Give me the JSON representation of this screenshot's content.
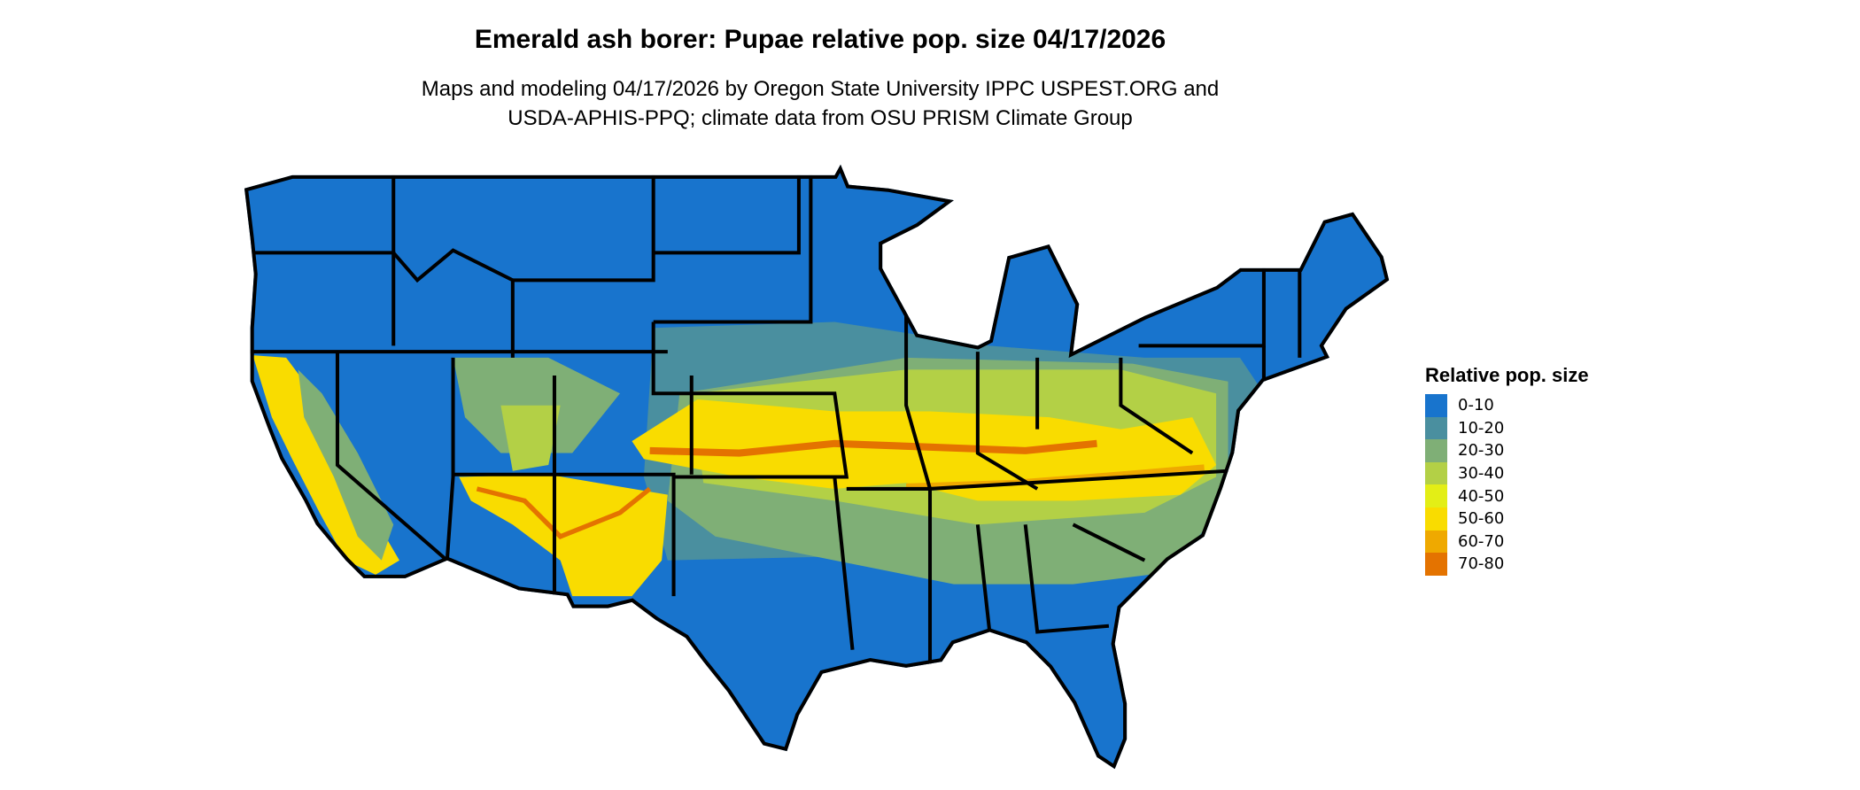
{
  "header": {
    "title": "Emerald ash borer: Pupae relative pop. size 04/17/2026",
    "subtitle_line1": "Maps and modeling 04/17/2026 by Oregon State University IPPC USPEST.ORG and",
    "subtitle_line2": "USDA-APHIS-PPQ; climate data from OSU PRISM Climate Group"
  },
  "legend": {
    "title": "Relative pop. size",
    "items": [
      {
        "label": "0-10",
        "color": "#1874CD"
      },
      {
        "label": "10-20",
        "color": "#4A8F9F"
      },
      {
        "label": "20-30",
        "color": "#7FAF76"
      },
      {
        "label": "30-40",
        "color": "#B3D046"
      },
      {
        "label": "40-50",
        "color": "#E3EE16"
      },
      {
        "label": "50-60",
        "color": "#F9DC00"
      },
      {
        "label": "60-70",
        "color": "#EFA900"
      },
      {
        "label": "70-80",
        "color": "#E47300"
      }
    ]
  },
  "map": {
    "region": "Contiguous United States",
    "border_color": "#000000"
  }
}
